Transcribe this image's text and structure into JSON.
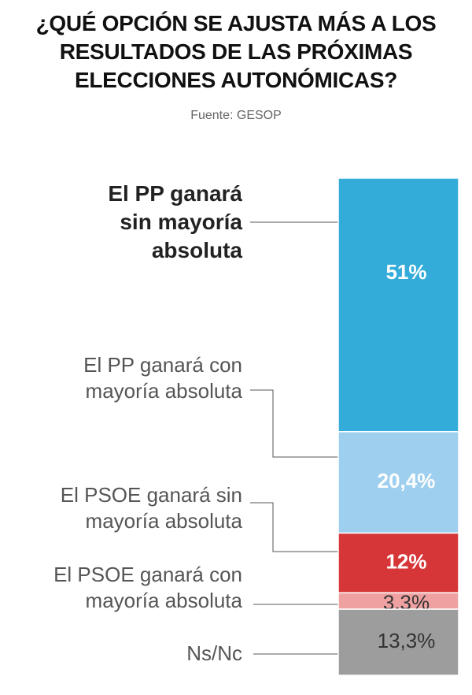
{
  "chart_data": {
    "type": "stacked-bar",
    "title": "¿QUÉ OPCIÓN SE AJUSTA MÁS A LOS RESULTADOS DE LAS PRÓXIMAS ELECCIONES AUTONÓMICAS?",
    "subtitle": "Fuente: GESOP",
    "categories": [
      "El PP ganará sin mayoría absoluta",
      "El PP ganará con mayoría absoluta",
      "El PSOE ganará sin mayoría absoluta",
      "El PSOE ganará con mayoría absoluta",
      "Ns/Nc"
    ],
    "values": [
      51,
      20.4,
      12,
      3.3,
      13.3
    ],
    "value_labels": [
      "51%",
      "20,4%",
      "12%",
      "3,3%",
      "13,3%"
    ],
    "colors": [
      "#34acd9",
      "#9ecfee",
      "#d63638",
      "#efa1a1",
      "#9d9d9d"
    ],
    "value_label_colors": [
      "#ffffff",
      "#ffffff",
      "#ffffff",
      "#333333",
      "#333333"
    ]
  }
}
